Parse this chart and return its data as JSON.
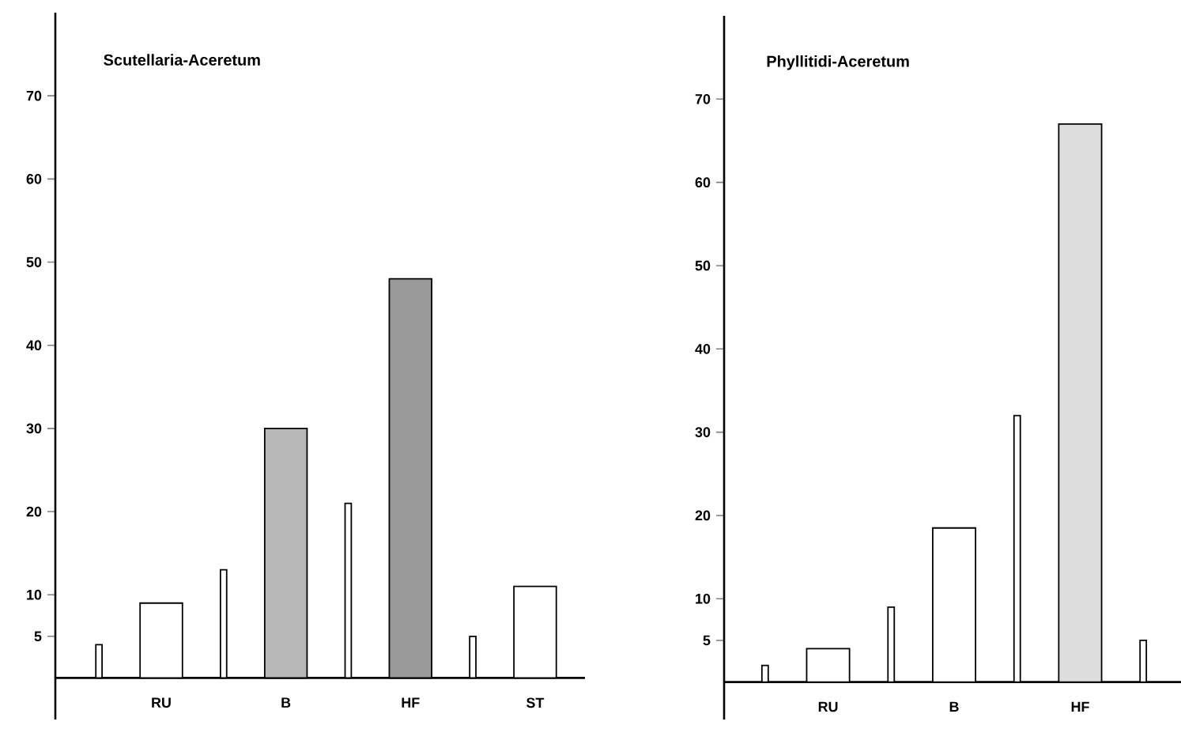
{
  "chart_data": [
    {
      "type": "bar",
      "title": "Scutellaria-Aceretum",
      "categories": [
        null,
        "RU",
        null,
        "B",
        null,
        "HF",
        null,
        "ST"
      ],
      "values": [
        4,
        9,
        13,
        30,
        21,
        48,
        5,
        11
      ],
      "colors": [
        "#ffffff",
        "#ffffff",
        "#ffffff",
        "#b8b8b8",
        "#ffffff",
        "#9a9a9a",
        "#ffffff",
        "#ffffff"
      ],
      "ylim": [
        -5,
        80
      ],
      "yticks": [
        5,
        10,
        20,
        30,
        40,
        50,
        60,
        70
      ]
    },
    {
      "type": "bar",
      "title": "Phyllitidi-Aceretum",
      "categories": [
        null,
        "RU",
        null,
        "B",
        null,
        "HF",
        null
      ],
      "values": [
        2,
        4,
        9,
        18.5,
        32,
        67,
        5
      ],
      "colors": [
        "#ffffff",
        "#ffffff",
        "#ffffff",
        "#ffffff",
        "#ffffff",
        "#dddddd",
        "#ffffff"
      ],
      "ylim": [
        -4.5,
        80
      ],
      "yticks": [
        5,
        10,
        20,
        30,
        40,
        50,
        60,
        70
      ]
    }
  ]
}
